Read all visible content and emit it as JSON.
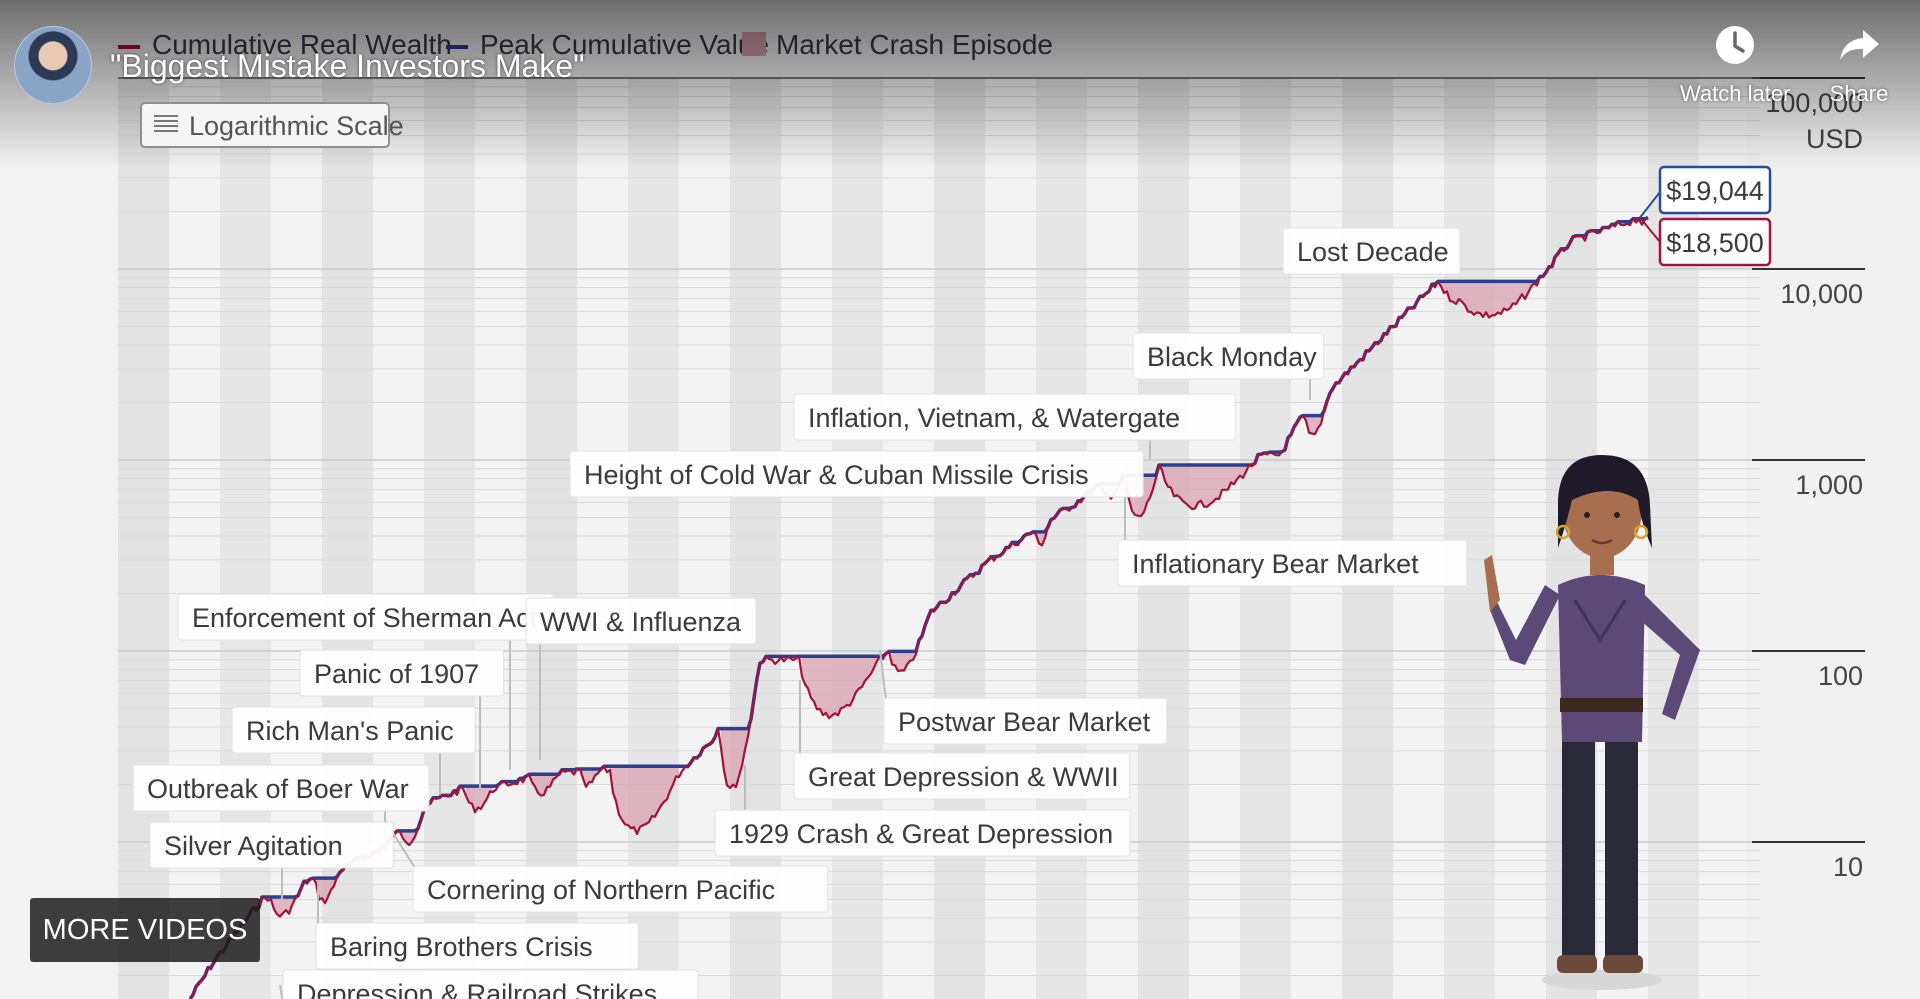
{
  "video": {
    "title": "\"Biggest Mistake Investors Make\"",
    "watch_later_label": "Watch later",
    "share_label": "Share",
    "more_videos_label": "MORE VIDEOS"
  },
  "chart_controls": {
    "scale_toggle_label": "Logarithmic Scale"
  },
  "colors": {
    "wealth_line": "#a3123a",
    "peak_line": "#2b3f8f",
    "crash_fill": "#d9a2b2",
    "value_box_blue": "#2b4a9c",
    "value_box_red": "#a3123a"
  },
  "chart_data": {
    "type": "line",
    "y_scale": "log",
    "y_unit": "USD",
    "y_ticks": [
      "10",
      "100",
      "1,000",
      "10,000",
      "100,000"
    ],
    "legend": [
      {
        "label": "Cumulative Real Wealth",
        "swatch": "line",
        "color": "#a3123a"
      },
      {
        "label": "Peak Cumulative Value",
        "swatch": "line",
        "color": "#2b3f8f"
      },
      {
        "label": "Market Crash Episode",
        "swatch": "box",
        "color": "#d9a2b2"
      }
    ],
    "end_values": {
      "peak": "$19,044",
      "wealth": "$18,500"
    },
    "peak_value": 19044,
    "wealth_value": 18500,
    "crash_episodes": [
      "Depression & Railroad Strikes",
      "Silver Agitation",
      "Baring Brothers Crisis",
      "Outbreak of Boer War",
      "Cornering of Northern Pacific",
      "Rich Man's Panic",
      "Panic of 1907",
      "Enforcement of Sherman Act",
      "WWI & Influenza",
      "1929 Crash & Great Depression",
      "Great Depression & WWII",
      "Postwar Bear Market",
      "Height of Cold War & Cuban Missile Crisis",
      "Inflation, Vietnam, & Watergate",
      "Inflationary Bear Market",
      "Black Monday",
      "Lost Decade"
    ]
  }
}
